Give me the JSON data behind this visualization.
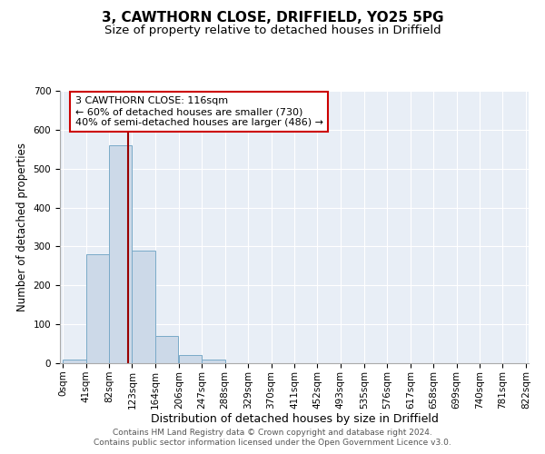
{
  "title1": "3, CAWTHORN CLOSE, DRIFFIELD, YO25 5PG",
  "title2": "Size of property relative to detached houses in Driffield",
  "xlabel": "Distribution of detached houses by size in Driffield",
  "ylabel": "Number of detached properties",
  "bar_edges": [
    0,
    41,
    82,
    123,
    164,
    206,
    247,
    288,
    329,
    370,
    411,
    452,
    493,
    535,
    576,
    617,
    658,
    699,
    740,
    781,
    822
  ],
  "bar_heights": [
    10,
    280,
    560,
    290,
    70,
    20,
    10,
    0,
    0,
    0,
    0,
    0,
    0,
    0,
    0,
    0,
    0,
    0,
    0,
    0
  ],
  "bar_color": "#ccd9e8",
  "bar_edgecolor": "#7aaac8",
  "property_line_x": 116,
  "property_line_color": "#990000",
  "annotation_text": "3 CAWTHORN CLOSE: 116sqm\n← 60% of detached houses are smaller (730)\n40% of semi-detached houses are larger (486) →",
  "annotation_box_color": "#ffffff",
  "annotation_box_edgecolor": "#cc0000",
  "ylim": [
    0,
    700
  ],
  "yticks": [
    0,
    100,
    200,
    300,
    400,
    500,
    600,
    700
  ],
  "background_color": "#e8eef6",
  "grid_color": "#ffffff",
  "footer_line1": "Contains HM Land Registry data © Crown copyright and database right 2024.",
  "footer_line2": "Contains public sector information licensed under the Open Government Licence v3.0.",
  "title1_fontsize": 11,
  "title2_fontsize": 9.5,
  "xlabel_fontsize": 9,
  "ylabel_fontsize": 8.5,
  "tick_fontsize": 7.5,
  "footer_fontsize": 6.5,
  "annotation_fontsize": 8
}
